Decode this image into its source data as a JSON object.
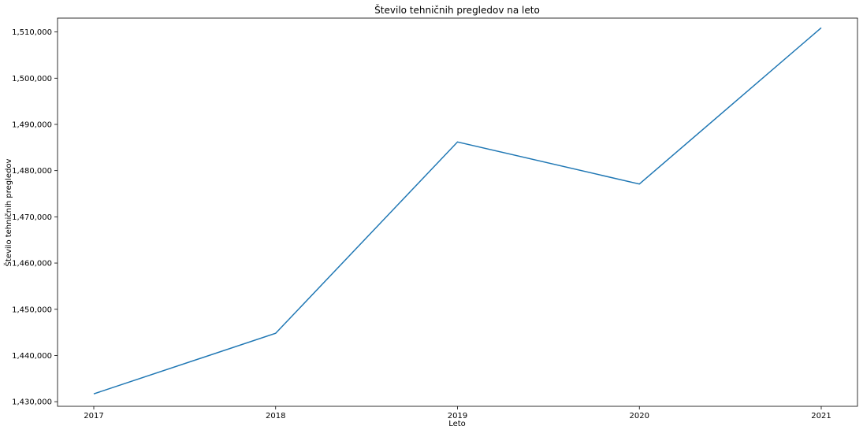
{
  "chart_data": {
    "type": "line",
    "title": "Število tehničnih pregledov na leto",
    "xlabel": "Leto",
    "ylabel": "Število tehničnih pregledov",
    "x": [
      "2017",
      "2018",
      "2019",
      "2020",
      "2021"
    ],
    "series": [
      {
        "values": [
          1431700,
          1444800,
          1486200,
          1477100,
          1510900
        ],
        "color": "#1f77b4"
      }
    ],
    "ylim": [
      1429000,
      1513000
    ],
    "yticks": [
      1430000,
      1440000,
      1450000,
      1460000,
      1470000,
      1480000,
      1490000,
      1500000,
      1510000
    ],
    "ytick_labels": [
      "1,430,000",
      "1,440,000",
      "1,450,000",
      "1,460,000",
      "1,470,000",
      "1,480,000",
      "1,490,000",
      "1,500,000",
      "1,510,000"
    ],
    "grid": false,
    "legend": false
  }
}
